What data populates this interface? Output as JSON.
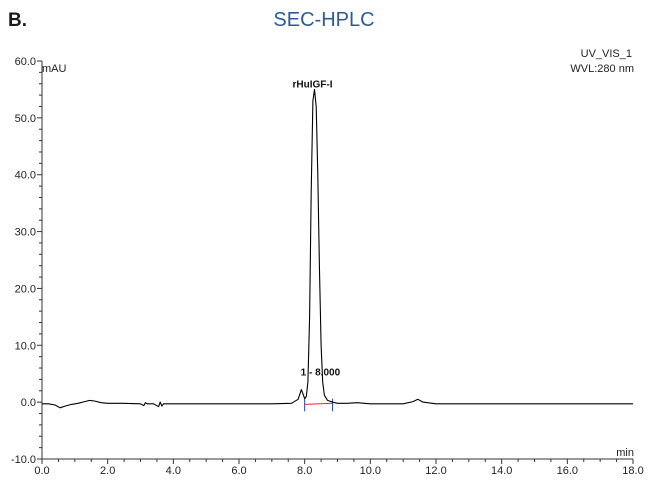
{
  "panel_label": "B.",
  "title": "SEC-HPLC",
  "colors": {
    "title": "#2d5b93",
    "trace": "#000000",
    "baseline": "#ff2020",
    "marker": "#2040c0",
    "axis": "#333333"
  },
  "chart_data": {
    "type": "line",
    "ylabel": "mAU",
    "xlabel": "min",
    "channel": "UV_VIS_1",
    "wavelength": "WVL:280 nm",
    "xlim": [
      0,
      18
    ],
    "ylim": [
      -10,
      60
    ],
    "x_ticks": [
      0,
      2,
      4,
      6,
      8,
      10,
      12,
      14,
      16,
      18
    ],
    "x_tick_labels": [
      "0.0",
      "2.0",
      "4.0",
      "6.0",
      "8.0",
      "10.0",
      "12.0",
      "14.0",
      "16.0",
      "18.0"
    ],
    "y_ticks": [
      -10,
      0,
      10,
      20,
      30,
      40,
      50,
      60
    ],
    "y_tick_labels": [
      "-10.0",
      "0.0",
      "10.0",
      "20.0",
      "30.0",
      "40.0",
      "50.0",
      "60.0"
    ],
    "series": [
      {
        "x": [
          0,
          0.2,
          0.4,
          0.55,
          0.7,
          0.9,
          1.1,
          1.3,
          1.45,
          1.6,
          1.8,
          2.0,
          2.5,
          3.0,
          3.1,
          3.15,
          3.2,
          3.4,
          3.55,
          3.6,
          3.65,
          3.7,
          3.8,
          4.0,
          5.0,
          6.0,
          7.0,
          7.6,
          7.8,
          7.9,
          8.0,
          8.05,
          8.1,
          8.15,
          8.2,
          8.25,
          8.3,
          8.35,
          8.4,
          8.45,
          8.5,
          8.55,
          8.6,
          8.7,
          8.85,
          9.0,
          9.3,
          9.6,
          10.0,
          11.0,
          11.3,
          11.45,
          11.6,
          12.0,
          13.0,
          14.0,
          15.0,
          16.0,
          17.0,
          18.0
        ],
        "y": [
          -0.3,
          -0.3,
          -0.5,
          -1.0,
          -0.7,
          -0.4,
          -0.2,
          0.1,
          0.3,
          0.2,
          -0.1,
          -0.2,
          -0.2,
          -0.3,
          -0.6,
          -0.1,
          -0.3,
          -0.3,
          -0.8,
          0.0,
          -0.7,
          -0.3,
          -0.3,
          -0.3,
          -0.3,
          -0.3,
          -0.3,
          -0.2,
          0.5,
          2.2,
          0.6,
          1.0,
          3.5,
          15.0,
          37.0,
          53.0,
          55.0,
          52.0,
          40.0,
          24.0,
          10.0,
          3.5,
          1.2,
          0.3,
          0.0,
          -0.2,
          -0.2,
          -0.1,
          -0.3,
          -0.3,
          0.1,
          0.5,
          0.0,
          -0.3,
          -0.3,
          -0.3,
          -0.3,
          -0.3,
          -0.3,
          -0.3
        ]
      }
    ],
    "annotations": [
      {
        "text": "rHuIGF-I",
        "x": 8.3,
        "y": 55
      },
      {
        "text": "1 - 8.000",
        "x": 8.0,
        "y": 2.2
      }
    ],
    "integration_markers_x": [
      8.0,
      8.85
    ],
    "grid": false
  }
}
